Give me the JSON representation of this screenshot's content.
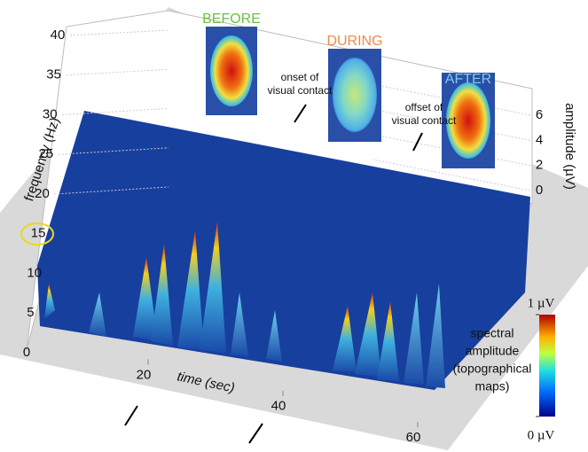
{
  "chart_data": {
    "type": "surface3d",
    "x_label": "time (sec)",
    "y_label": "frequency (Hz)",
    "z_label": "amplitude (µV)",
    "xlim": [
      0,
      65
    ],
    "xticks": [
      20,
      40,
      60
    ],
    "ylim": [
      0,
      40
    ],
    "yticks": [
      0,
      5,
      10,
      15,
      20,
      25,
      30,
      35,
      40
    ],
    "zlim": [
      0,
      6
    ],
    "zticks": [
      0,
      2,
      4,
      6
    ],
    "colormap": "jet",
    "colorbar": {
      "title_lines": [
        "spectral",
        "amplitude",
        "(topographical",
        "maps)"
      ],
      "ticks": [
        {
          "value": 0,
          "label": "0 µV"
        },
        {
          "value": 1,
          "label": "1 µV"
        }
      ],
      "lim": [
        0,
        1
      ]
    },
    "topomaps": [
      {
        "label": "BEFORE",
        "color": "#6cbf46"
      },
      {
        "label": "DURING",
        "color": "#f08a4b"
      },
      {
        "label": "AFTER",
        "color": "#7fcbe8"
      }
    ],
    "annotations": [
      {
        "lines": [
          "onset of",
          "visual contact"
        ]
      },
      {
        "lines": [
          "offset of",
          "visual contact"
        ]
      }
    ]
  }
}
